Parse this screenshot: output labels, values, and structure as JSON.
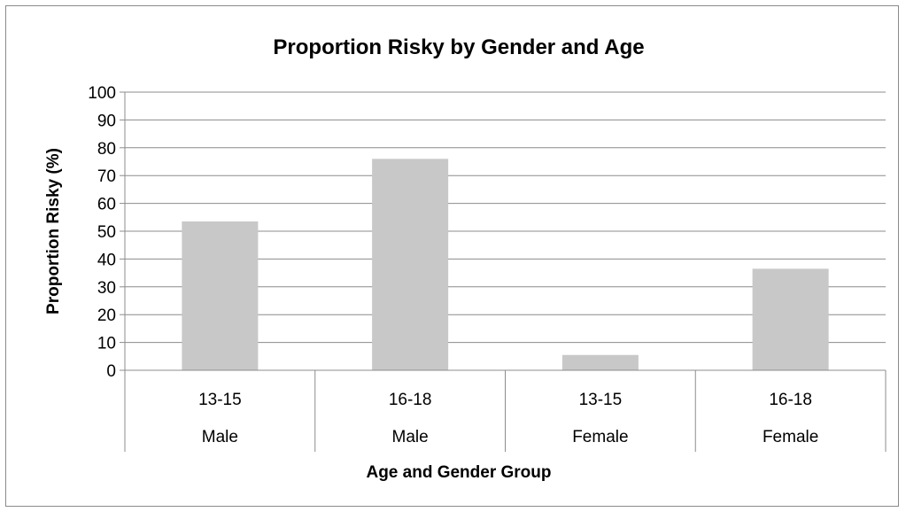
{
  "chart_data": {
    "type": "bar",
    "title": "Proportion Risky by Gender and Age",
    "xlabel": "Age and Gender Group",
    "ylabel": "Proportion Risky (%)",
    "ylim": [
      0,
      100
    ],
    "y_ticks": [
      "0",
      "10",
      "20",
      "30",
      "40",
      "50",
      "60",
      "70",
      "80",
      "90",
      "100"
    ],
    "grid": true,
    "legend": "none",
    "categories": [
      {
        "age": "13-15",
        "gender": "Male"
      },
      {
        "age": "16-18",
        "gender": "Male"
      },
      {
        "age": "13-15",
        "gender": "Female"
      },
      {
        "age": "16-18",
        "gender": "Female"
      }
    ],
    "values": [
      53.5,
      76,
      5.5,
      36.5
    ],
    "bar_color": "#c8c8c8"
  }
}
